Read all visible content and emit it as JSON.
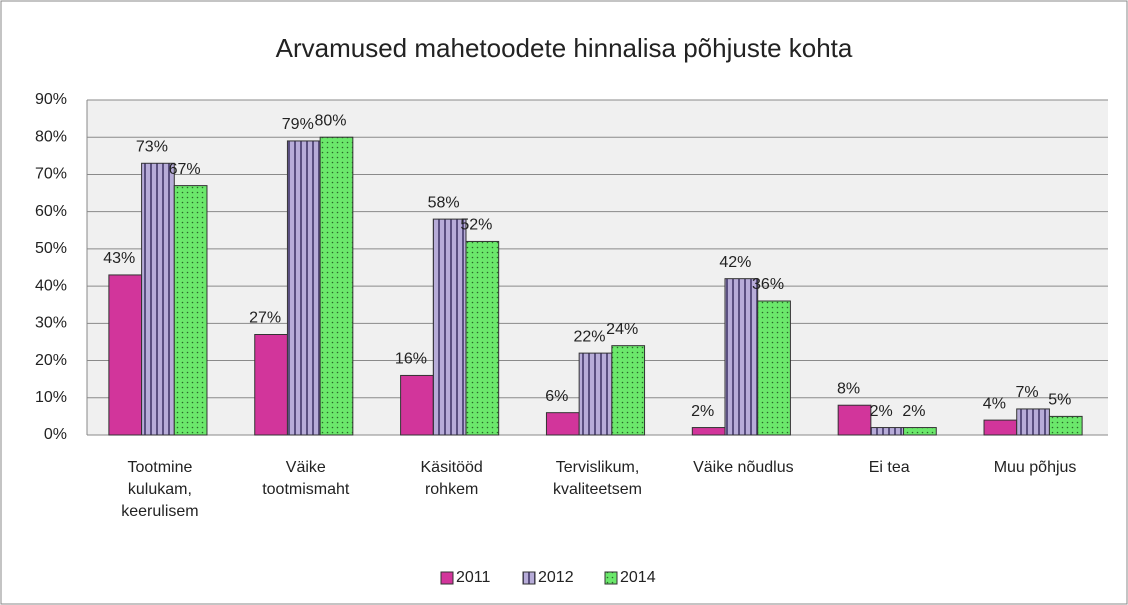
{
  "chart_data": {
    "type": "bar",
    "title": "Arvamused mahetoodete hinnalisa põhjuste kohta",
    "categories": [
      "Tootmine kulukam, keerulisem",
      "Väike tootmismaht",
      "Käsitööd rohkem",
      "Tervislikum, kvaliteetsem",
      "Väike nõudlus",
      "Ei tea",
      "Muu põhjus"
    ],
    "series": [
      {
        "name": "2011",
        "color": "#d2359b",
        "values": [
          43,
          27,
          16,
          6,
          2,
          8,
          4
        ],
        "value_labels": [
          "43%",
          "27%",
          "16%",
          "6%",
          "2%",
          "8%",
          "4%"
        ]
      },
      {
        "name": "2012",
        "color": "#9d90c4",
        "values": [
          73,
          79,
          58,
          22,
          42,
          2,
          7
        ],
        "value_labels": [
          "73%",
          "79%",
          "58%",
          "22%",
          "42%",
          "2%",
          "7%"
        ]
      },
      {
        "name": "2014",
        "color": "#6be86b",
        "values": [
          67,
          80,
          52,
          24,
          36,
          2,
          5
        ],
        "value_labels": [
          "67%",
          "80%",
          "52%",
          "24%",
          "36%",
          "2%",
          "5%"
        ]
      }
    ],
    "ylim": [
      0,
      90
    ],
    "yticks": [
      {
        "value": 0,
        "label": "0%"
      },
      {
        "value": 10,
        "label": "10%"
      },
      {
        "value": 20,
        "label": "20%"
      },
      {
        "value": 30,
        "label": "30%"
      },
      {
        "value": 40,
        "label": "40%"
      },
      {
        "value": 50,
        "label": "50%"
      },
      {
        "value": 60,
        "label": "60%"
      },
      {
        "value": 70,
        "label": "70%"
      },
      {
        "value": 80,
        "label": "80%"
      },
      {
        "value": 90,
        "label": "90%"
      }
    ],
    "grid": true,
    "legend": "bottom"
  }
}
